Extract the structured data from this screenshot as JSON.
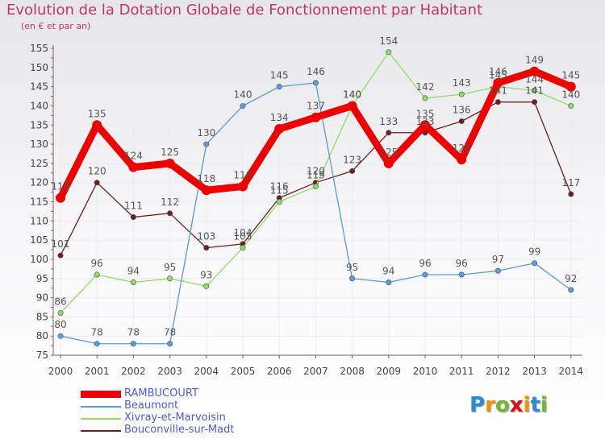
{
  "header": {
    "title": "Evolution de la Dotation Globale de Fonctionnement par Habitant",
    "subtitle": "(en € et par an)"
  },
  "logo": {
    "letters": [
      "P",
      "r",
      "o",
      "x",
      "i",
      "t",
      "i"
    ],
    "colors": [
      "#2a8bd6",
      "#f39200",
      "#6dbb32",
      "#e30613",
      "#f39200",
      "#2a8bd6",
      "#6dbb32"
    ]
  },
  "chart_data": {
    "type": "line",
    "title": "Evolution de la Dotation Globale de Fonctionnement par Habitant",
    "subtitle": "(en € et par an)",
    "xlabel": "",
    "ylabel": "",
    "ylim": [
      75,
      155
    ],
    "yticks": [
      75,
      80,
      85,
      90,
      95,
      100,
      105,
      110,
      115,
      120,
      125,
      130,
      135,
      140,
      145,
      150,
      155
    ],
    "grid": true,
    "legend_position": "bottom-left",
    "x": [
      "2000",
      "2001",
      "2002",
      "2003",
      "2004",
      "2005",
      "2006",
      "2007",
      "2008",
      "2009",
      "2010",
      "2011",
      "2012",
      "2013",
      "2014"
    ],
    "series": [
      {
        "name": "Bouconville-sur-Madt",
        "color": "#6b1f23",
        "values": [
          101,
          120,
          111,
          112,
          103,
          104,
          116,
          120,
          123,
          133,
          133,
          136,
          141,
          141,
          117
        ]
      },
      {
        "name": "Xivray-et-Marvoisin",
        "color": "#8fdc65",
        "values": [
          86,
          96,
          94,
          95,
          93,
          103,
          115,
          119,
          140,
          154,
          142,
          143,
          145,
          144,
          140
        ]
      },
      {
        "name": "Beaumont",
        "color": "#5a9bd8",
        "values": [
          80,
          78,
          78,
          78,
          130,
          140,
          145,
          146,
          95,
          94,
          96,
          96,
          97,
          99,
          92
        ]
      },
      {
        "name": "RAMBUCOURT",
        "color": "#ee0000",
        "values": [
          116,
          135,
          124,
          125,
          118,
          119,
          134,
          137,
          140,
          125,
          135,
          126,
          146,
          149,
          145
        ]
      }
    ],
    "legend_order": [
      "RAMBUCOURT",
      "Beaumont",
      "Xivray-et-Marvoisin",
      "Bouconville-sur-Madt"
    ]
  }
}
